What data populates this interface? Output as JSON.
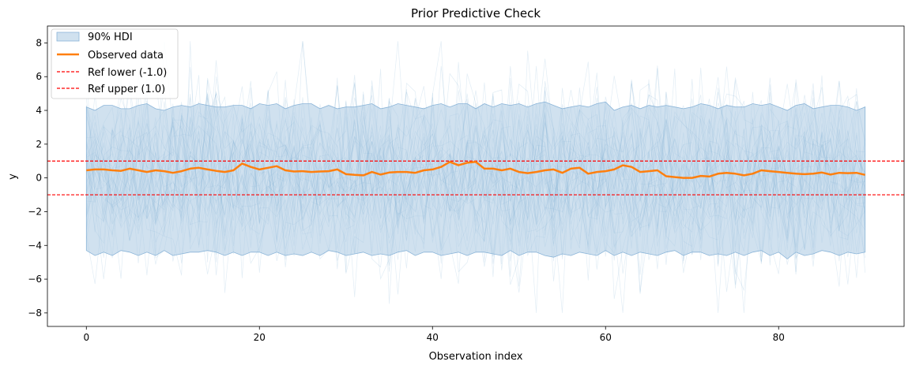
{
  "chart_data": {
    "type": "line",
    "title": "Prior Predictive Check",
    "xlabel": "Observation index",
    "ylabel": "y",
    "xlim": [
      -4.5,
      94.5
    ],
    "ylim": [
      -8.8,
      9.0
    ],
    "xticks": [
      0,
      20,
      40,
      60,
      80
    ],
    "yticks": [
      -8,
      -6,
      -4,
      -2,
      0,
      2,
      4,
      6,
      8
    ],
    "grid": false,
    "legend_position": "top-left",
    "colors": {
      "hdi_fill": "#a9c8e2",
      "hdi_edge": "#8ab4d8",
      "observed": "#ff7f0e",
      "reference": "#ff0000",
      "draws": "#1f77b4"
    },
    "x": [
      0,
      1,
      2,
      3,
      4,
      5,
      6,
      7,
      8,
      9,
      10,
      11,
      12,
      13,
      14,
      15,
      16,
      17,
      18,
      19,
      20,
      21,
      22,
      23,
      24,
      25,
      26,
      27,
      28,
      29,
      30,
      31,
      32,
      33,
      34,
      35,
      36,
      37,
      38,
      39,
      40,
      41,
      42,
      43,
      44,
      45,
      46,
      47,
      48,
      49,
      50,
      51,
      52,
      53,
      54,
      55,
      56,
      57,
      58,
      59,
      60,
      61,
      62,
      63,
      64,
      65,
      66,
      67,
      68,
      69,
      70,
      71,
      72,
      73,
      74,
      75,
      76,
      77,
      78,
      79,
      80,
      81,
      82,
      83,
      84,
      85,
      86,
      87,
      88,
      89,
      90
    ],
    "hdi_upper": [
      4.2,
      4.0,
      4.3,
      4.3,
      4.1,
      4.1,
      4.3,
      4.4,
      4.1,
      4.0,
      4.2,
      4.3,
      4.2,
      4.4,
      4.3,
      4.2,
      4.2,
      4.3,
      4.3,
      4.1,
      4.4,
      4.3,
      4.4,
      4.1,
      4.3,
      4.4,
      4.4,
      4.1,
      4.3,
      4.1,
      4.2,
      4.2,
      4.3,
      4.4,
      4.1,
      4.2,
      4.4,
      4.3,
      4.2,
      4.1,
      4.3,
      4.4,
      4.2,
      4.4,
      4.4,
      4.1,
      4.4,
      4.2,
      4.4,
      4.3,
      4.4,
      4.2,
      4.4,
      4.5,
      4.3,
      4.1,
      4.2,
      4.3,
      4.2,
      4.4,
      4.5,
      4.0,
      4.2,
      4.3,
      4.1,
      4.3,
      4.2,
      4.3,
      4.2,
      4.1,
      4.2,
      4.4,
      4.3,
      4.1,
      4.3,
      4.2,
      4.2,
      4.4,
      4.3,
      4.4,
      4.2,
      4.0,
      4.3,
      4.4,
      4.1,
      4.2,
      4.3,
      4.3,
      4.2,
      4.0,
      4.2
    ],
    "hdi_lower": [
      -4.3,
      -4.6,
      -4.4,
      -4.6,
      -4.3,
      -4.4,
      -4.6,
      -4.4,
      -4.6,
      -4.3,
      -4.6,
      -4.5,
      -4.4,
      -4.4,
      -4.3,
      -4.4,
      -4.6,
      -4.4,
      -4.6,
      -4.4,
      -4.4,
      -4.6,
      -4.4,
      -4.6,
      -4.5,
      -4.6,
      -4.4,
      -4.6,
      -4.3,
      -4.4,
      -4.6,
      -4.5,
      -4.4,
      -4.6,
      -4.5,
      -4.6,
      -4.4,
      -4.3,
      -4.6,
      -4.4,
      -4.4,
      -4.6,
      -4.5,
      -4.4,
      -4.6,
      -4.4,
      -4.4,
      -4.5,
      -4.6,
      -4.3,
      -4.6,
      -4.4,
      -4.4,
      -4.6,
      -4.7,
      -4.5,
      -4.6,
      -4.4,
      -4.5,
      -4.6,
      -4.3,
      -4.6,
      -4.4,
      -4.6,
      -4.4,
      -4.5,
      -4.6,
      -4.4,
      -4.3,
      -4.6,
      -4.4,
      -4.4,
      -4.6,
      -4.5,
      -4.6,
      -4.4,
      -4.6,
      -4.4,
      -4.3,
      -4.6,
      -4.4,
      -4.8,
      -4.4,
      -4.6,
      -4.5,
      -4.3,
      -4.4,
      -4.6,
      -4.4,
      -4.5,
      -4.4
    ],
    "observed": [
      0.45,
      0.5,
      0.5,
      0.45,
      0.42,
      0.55,
      0.45,
      0.35,
      0.45,
      0.4,
      0.3,
      0.4,
      0.55,
      0.6,
      0.5,
      0.42,
      0.35,
      0.45,
      0.85,
      0.65,
      0.5,
      0.6,
      0.7,
      0.45,
      0.38,
      0.4,
      0.35,
      0.38,
      0.4,
      0.5,
      0.22,
      0.18,
      0.15,
      0.35,
      0.2,
      0.32,
      0.35,
      0.35,
      0.3,
      0.45,
      0.5,
      0.65,
      0.95,
      0.75,
      0.9,
      0.95,
      0.55,
      0.55,
      0.45,
      0.55,
      0.35,
      0.28,
      0.35,
      0.45,
      0.5,
      0.3,
      0.55,
      0.6,
      0.25,
      0.35,
      0.4,
      0.5,
      0.75,
      0.65,
      0.35,
      0.4,
      0.45,
      0.1,
      0.05,
      0.0,
      0.0,
      0.12,
      0.08,
      0.25,
      0.3,
      0.25,
      0.15,
      0.25,
      0.45,
      0.4,
      0.35,
      0.3,
      0.25,
      0.22,
      0.25,
      0.32,
      0.2,
      0.3,
      0.28,
      0.3,
      0.18
    ],
    "series": [
      {
        "name": "90% HDI",
        "kind": "band"
      },
      {
        "name": "Observed data",
        "kind": "line"
      },
      {
        "name": "Ref lower (-1.0)",
        "kind": "hline",
        "y": -1.0
      },
      {
        "name": "Ref upper (1.0)",
        "kind": "hline",
        "y": 1.0
      }
    ],
    "draws": {
      "seed": 7,
      "count": 40,
      "scale": 2.5,
      "clip": [
        -8.0,
        8.1
      ]
    }
  }
}
